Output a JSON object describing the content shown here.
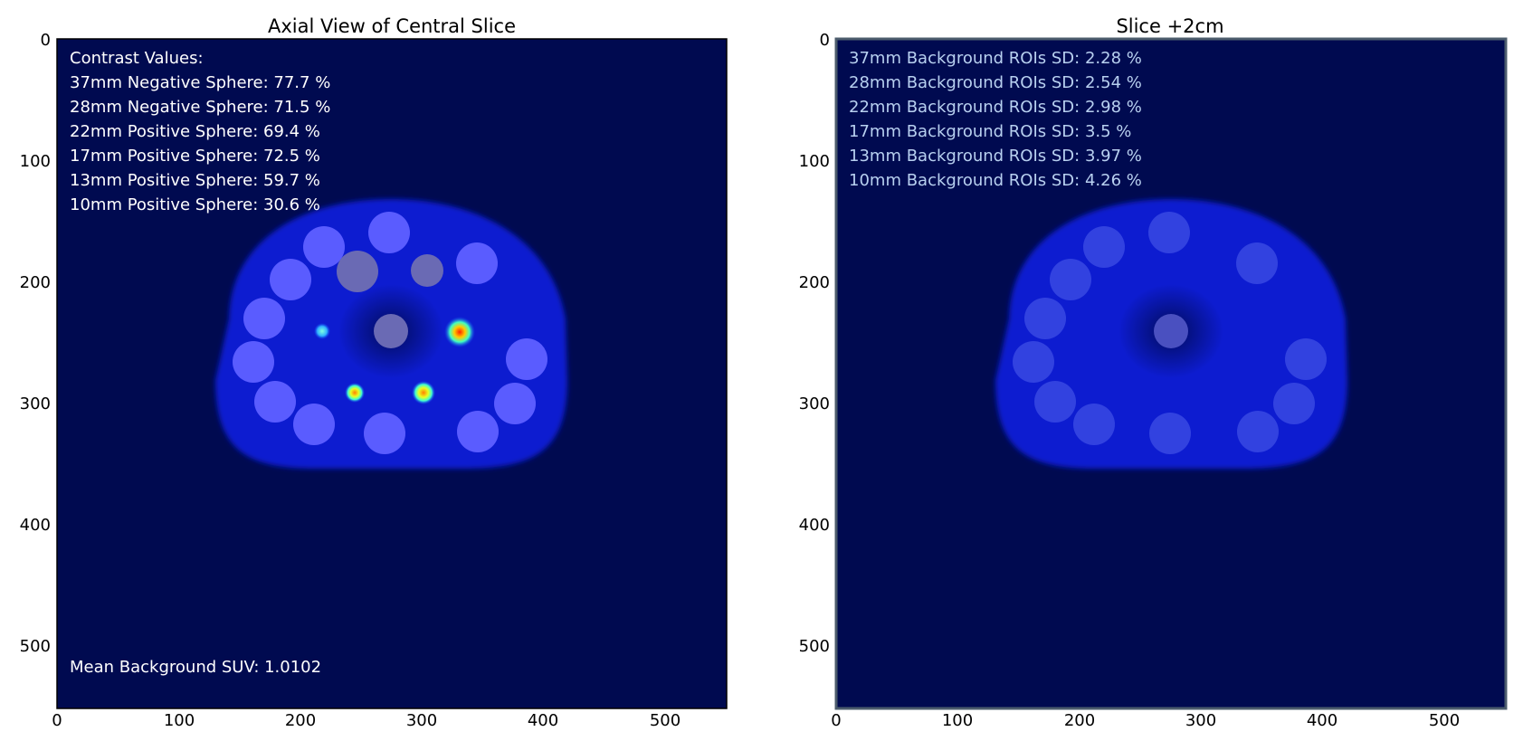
{
  "panels": [
    {
      "title": "Axial View of Central Slice",
      "x_ticks": [
        "0",
        "100",
        "200",
        "300",
        "400",
        "500"
      ],
      "y_ticks": [
        "0",
        "100",
        "200",
        "300",
        "400",
        "500"
      ],
      "annotations": [
        "Contrast Values:",
        "37mm Negative Sphere: 77.7 %",
        "28mm Negative Sphere: 71.5 %",
        "22mm Positive Sphere: 69.4 %",
        "17mm Positive Sphere: 72.5 %",
        "13mm Positive Sphere: 59.7 %",
        "10mm Positive Sphere: 30.6 %"
      ],
      "footer": "Mean Background SUV: 1.0102",
      "annotation_color": "#ffffff"
    },
    {
      "title": "Slice +2cm",
      "x_ticks": [
        "0",
        "100",
        "200",
        "300",
        "400",
        "500"
      ],
      "y_ticks": [
        "0",
        "100",
        "200",
        "300",
        "400",
        "500"
      ],
      "annotations": [
        "37mm Background ROIs SD: 2.28 %",
        "28mm Background ROIs SD: 2.54 %",
        "22mm Background ROIs SD: 2.98 %",
        "17mm Background ROIs SD: 3.5 %",
        "13mm Background ROIs SD: 3.97 %",
        "10mm Background ROIs SD: 4.26 %"
      ],
      "annotation_color": "#b8d0f0"
    }
  ],
  "colors": {
    "image_background": "#000a50",
    "phantom_body": "#0a1fd0",
    "roi_circle": "#5a5cff",
    "roi_circle_dim": "#3242e0",
    "negative_sphere": "#6a6ab4",
    "frame": "#000000",
    "frame_right": "#4c5c6c"
  }
}
